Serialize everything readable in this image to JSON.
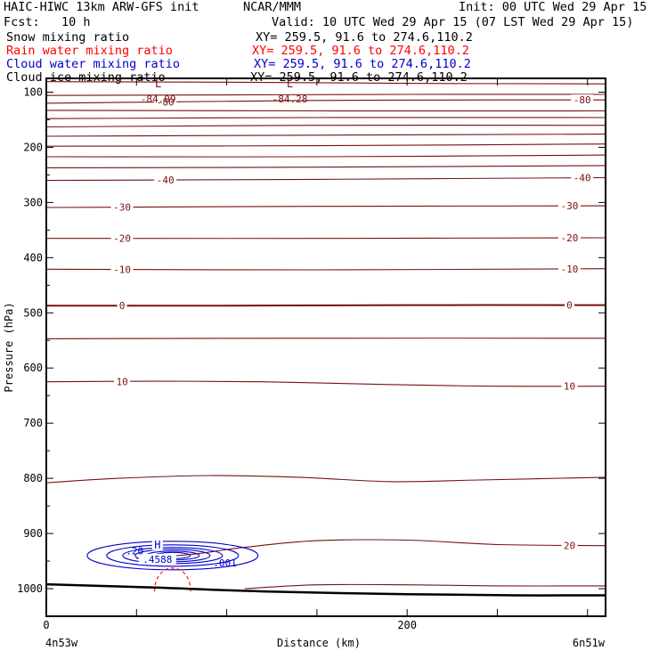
{
  "header": {
    "model": "HAIC-HIWC 13km ARW-GFS init",
    "center": "NCAR/MMM",
    "init": "Init: 00 UTC Wed 29 Apr 15",
    "fcst": "Fcst:   10 h",
    "valid": "Valid: 10 UTC Wed 29 Apr 15 (07 LST Wed 29 Apr 15)"
  },
  "fields": [
    {
      "name": "Snow mixing ratio",
      "xy": "XY= 259.5, 91.6 to 274.6,110.2",
      "color": "#000000"
    },
    {
      "name": "Rain water mixing ratio",
      "xy": "XY= 259.5, 91.6 to 274.6,110.2",
      "color": "#ff0000"
    },
    {
      "name": "Cloud water mixing ratio",
      "xy": "XY= 259.5, 91.6 to 274.6,110.2",
      "color": "#0000cc"
    },
    {
      "name": "Cloud ice mixing ratio",
      "xy": "XY= 259.5, 91.6 to 274.6,110.2",
      "color": "#000000"
    }
  ],
  "colors": {
    "temperature": "#7a1010",
    "cloud_water": "#0000cc",
    "rain_water": "#ff0000",
    "terrain": "#000000",
    "frame": "#000000"
  },
  "chart_data": {
    "type": "cross-section",
    "xlabel": "Distance (km)",
    "ylabel": "Pressure (hPa)",
    "xlim": [
      0,
      310
    ],
    "ylim": [
      1050,
      75
    ],
    "x_ticks": [
      0,
      50,
      100,
      150,
      200,
      250,
      300
    ],
    "x_tick_labels": [
      "0",
      "",
      "",
      "",
      "200",
      "",
      ""
    ],
    "y_tick_labels": [
      100,
      200,
      300,
      400,
      500,
      600,
      700,
      800,
      900,
      1000
    ],
    "endpoints": {
      "left": "4n53w",
      "right": "6n51w"
    },
    "temperature_contours": [
      {
        "value": -85,
        "points": [
          [
            0,
            81
          ],
          [
            100,
            82
          ],
          [
            200,
            84
          ],
          [
            310,
            85
          ]
        ]
      },
      {
        "value": -80,
        "points": [
          [
            0,
            106
          ],
          [
            100,
            105
          ],
          [
            200,
            104
          ],
          [
            310,
            104
          ]
        ]
      },
      {
        "value": -80,
        "label": "-80",
        "points": [
          [
            0,
            120
          ],
          [
            60,
            118
          ],
          [
            150,
            115
          ],
          [
            250,
            114
          ],
          [
            310,
            114
          ]
        ],
        "label_x": [
          66,
          297
        ]
      },
      {
        "value": -75,
        "points": [
          [
            0,
            133
          ],
          [
            150,
            134
          ],
          [
            310,
            134
          ]
        ]
      },
      {
        "value": -70,
        "points": [
          [
            0,
            148
          ],
          [
            150,
            146
          ],
          [
            310,
            146
          ]
        ]
      },
      {
        "value": -65,
        "points": [
          [
            0,
            163
          ],
          [
            150,
            160
          ],
          [
            310,
            160
          ]
        ]
      },
      {
        "value": -60,
        "points": [
          [
            0,
            180
          ],
          [
            150,
            178
          ],
          [
            310,
            176
          ]
        ]
      },
      {
        "value": -55,
        "points": [
          [
            0,
            198
          ],
          [
            150,
            197
          ],
          [
            310,
            194
          ]
        ]
      },
      {
        "value": -50,
        "points": [
          [
            0,
            217
          ],
          [
            150,
            217
          ],
          [
            310,
            214
          ]
        ]
      },
      {
        "value": -45,
        "points": [
          [
            0,
            237
          ],
          [
            150,
            236
          ],
          [
            310,
            233
          ]
        ]
      },
      {
        "value": -40,
        "label": "-40",
        "points": [
          [
            0,
            260
          ],
          [
            150,
            258
          ],
          [
            310,
            255
          ]
        ],
        "label_x": [
          66,
          297
        ]
      },
      {
        "value": -30,
        "label": "-30",
        "points": [
          [
            0,
            309
          ],
          [
            150,
            307
          ],
          [
            310,
            306
          ]
        ],
        "label_x": [
          42,
          290
        ]
      },
      {
        "value": -20,
        "label": "-20",
        "points": [
          [
            0,
            365
          ],
          [
            150,
            365
          ],
          [
            310,
            364
          ]
        ],
        "label_x": [
          42,
          290
        ]
      },
      {
        "value": -10,
        "label": "-10",
        "points": [
          [
            0,
            421
          ],
          [
            150,
            422
          ],
          [
            310,
            420
          ]
        ],
        "label_x": [
          42,
          290
        ]
      },
      {
        "value": 0,
        "label": "0",
        "bold": true,
        "points": [
          [
            0,
            487
          ],
          [
            100,
            487
          ],
          [
            200,
            486
          ],
          [
            310,
            486
          ]
        ],
        "label_x": [
          42,
          290
        ]
      },
      {
        "value": 5,
        "points": [
          [
            0,
            547
          ],
          [
            150,
            546
          ],
          [
            310,
            546
          ]
        ]
      },
      {
        "value": 10,
        "label": "10",
        "points": [
          [
            0,
            625
          ],
          [
            60,
            624
          ],
          [
            120,
            625
          ],
          [
            190,
            630
          ],
          [
            250,
            633
          ],
          [
            310,
            633
          ]
        ],
        "label_x": [
          42,
          290
        ]
      },
      {
        "value": 15,
        "points": [
          [
            0,
            808
          ],
          [
            40,
            800
          ],
          [
            90,
            795
          ],
          [
            140,
            798
          ],
          [
            190,
            806
          ],
          [
            240,
            803
          ],
          [
            310,
            798
          ]
        ]
      },
      {
        "value": 20,
        "label": "20",
        "points": [
          [
            50,
            945
          ],
          [
            80,
            938
          ],
          [
            110,
            925
          ],
          [
            150,
            913
          ],
          [
            200,
            912
          ],
          [
            250,
            920
          ],
          [
            310,
            922
          ]
        ],
        "label_x": [
          290
        ]
      },
      {
        "value": 25,
        "points": [
          [
            110,
            1000
          ],
          [
            150,
            993
          ],
          [
            200,
            993
          ],
          [
            250,
            995
          ],
          [
            310,
            995
          ]
        ]
      }
    ],
    "temperature_lows": [
      {
        "label": "L",
        "value": "-84.09",
        "x": 62,
        "p": 96
      },
      {
        "label": "L",
        "value": "-84.28",
        "x": 135,
        "p": 96
      }
    ],
    "cloud_water": {
      "max_label": "H",
      "max_value": ".4588",
      "max_x": 70,
      "max_p": 940,
      "contour_label": ".001",
      "contour_label_x": 99,
      "contour_label_p": 960,
      "side_label": ".20",
      "side_label_x": 49,
      "side_label_p": 938
    },
    "rain_water": {
      "x_range": [
        60,
        80
      ],
      "p_top": 955,
      "p_bottom": 1005
    },
    "terrain": [
      [
        0,
        992
      ],
      [
        60,
        998
      ],
      [
        120,
        1005
      ],
      [
        200,
        1010
      ],
      [
        260,
        1012
      ],
      [
        310,
        1012
      ]
    ]
  }
}
